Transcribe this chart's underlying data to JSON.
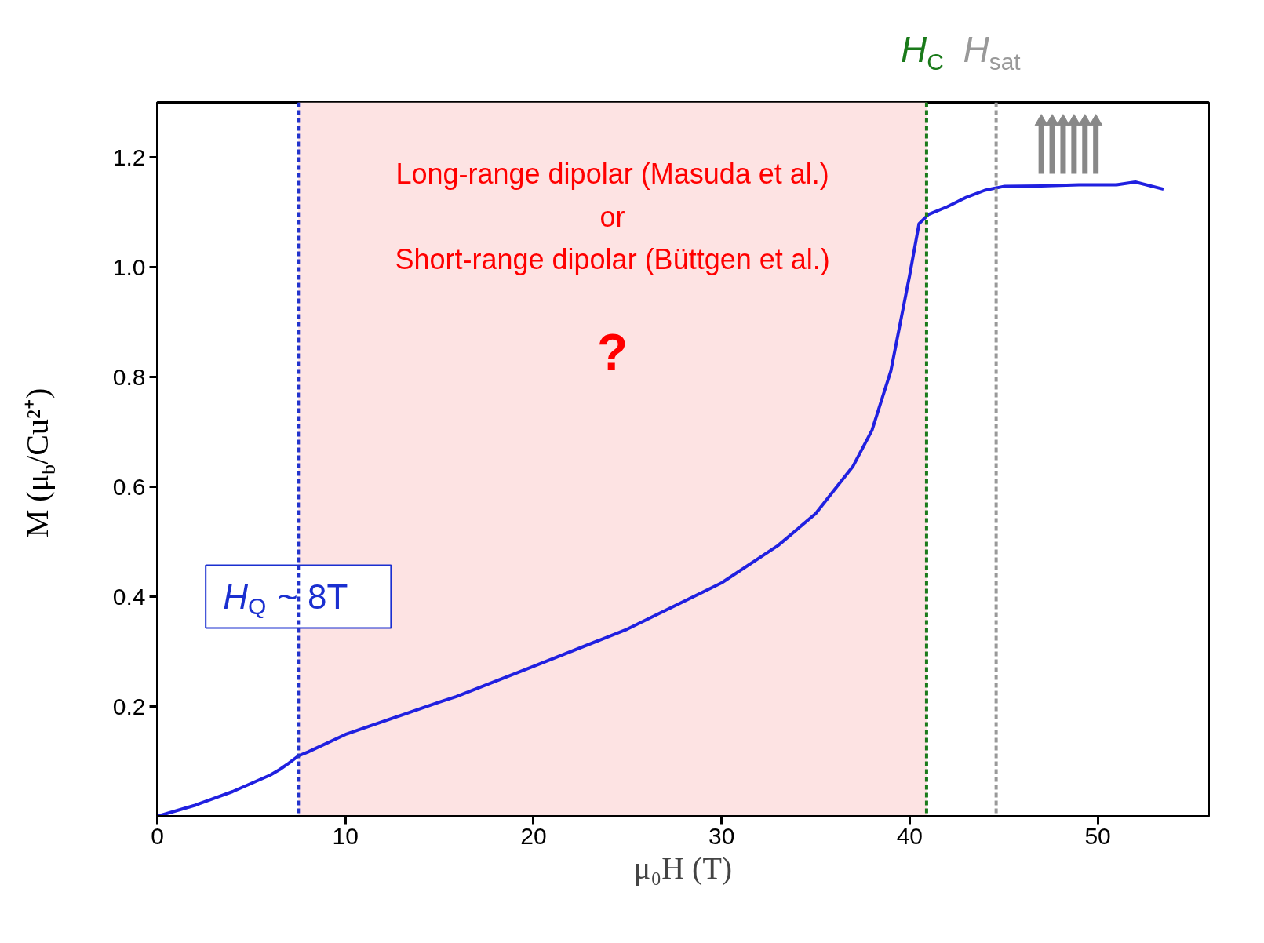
{
  "chart_data": {
    "type": "line",
    "xlabel": "μ₀H (T)",
    "ylabel": "M (μ$_{b}$/Cu²⁺)",
    "xlim": [
      0,
      55.9
    ],
    "ylim": [
      0,
      1.3
    ],
    "xticks": [
      0,
      10,
      20,
      30,
      40,
      50
    ],
    "yticks": [
      0.2,
      0.4,
      0.6,
      0.8,
      {
        "value": 1.0,
        "label": "1.0"
      },
      1.2
    ],
    "grid": false,
    "line_style": "solid",
    "marker": "none",
    "series": [
      {
        "color": "#2020e0",
        "x": [
          0,
          2,
          4,
          6,
          6.5,
          7,
          7.5,
          8,
          10,
          15,
          15.9,
          20,
          25,
          30,
          33,
          35,
          37,
          38,
          39,
          39.5,
          40,
          40.5,
          41,
          42,
          43,
          44,
          45,
          47,
          49,
          51,
          52,
          53.5
        ],
        "values": [
          0,
          0.02,
          0.045,
          0.075,
          0.085,
          0.097,
          0.11,
          0.117,
          0.149,
          0.208,
          0.218,
          0.273,
          0.341,
          0.425,
          0.493,
          0.551,
          0.638,
          0.703,
          0.811,
          0.898,
          0.985,
          1.079,
          1.096,
          1.11,
          1.127,
          1.14,
          1.147,
          1.148,
          1.15,
          1.15,
          1.155,
          1.142
        ]
      }
    ],
    "bands": [
      {
        "axis": "x",
        "from": 7.5,
        "to": 40.9,
        "color": "#fde3e3"
      }
    ],
    "ref_lines": [
      {
        "axis": "x",
        "value": 7.5,
        "color": "#2233cc",
        "line_style": "dashed"
      },
      {
        "axis": "x",
        "value": 40.9,
        "label": "H$_{C}$",
        "color": "#1a7a1a",
        "line_style": "dashed"
      },
      {
        "axis": "x",
        "value": 44.6,
        "label": "H$_{sat}$",
        "color": "#999999",
        "line_style": "dashed"
      }
    ],
    "annotations": [
      "Long-range dipolar (Masuda et al.)",
      "or",
      "Short-range dipolar (Büttgen et al.)",
      "?",
      {
        "text": "H$_{Q}$ ~ 8T",
        "x": 7.5,
        "y": 0.4
      }
    ]
  }
}
